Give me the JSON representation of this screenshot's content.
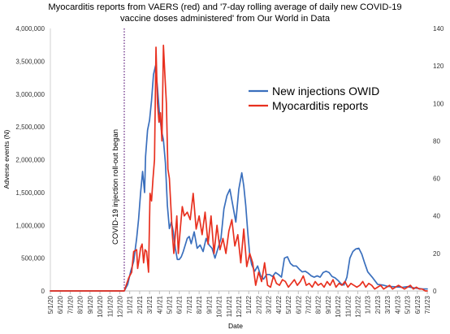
{
  "chart_data": {
    "type": "line",
    "title_line1": "Myocarditis reports from VAERS (red) and '7-day rolling average of daily new COVID-19",
    "title_line2": "vaccine doses administered' from Our World in Data",
    "xlabel": "Date",
    "ylabel": "Adverse events (N)",
    "y_left_ticks": [
      "0",
      "500,000",
      "1,000,000",
      "1,500,000",
      "2,000,000",
      "2,500,000",
      "3,000,000",
      "3,500,000",
      "4,000,000"
    ],
    "y_right_ticks": [
      "0",
      "20",
      "40",
      "60",
      "80",
      "100",
      "120",
      "140"
    ],
    "y_left_range": [
      0,
      4000000
    ],
    "y_right_range": [
      0,
      140
    ],
    "x_ticks": [
      "5/1/20",
      "6/1/20",
      "7/1/20",
      "8/1/20",
      "9/1/20",
      "10/1/20",
      "11/1/20",
      "12/1/20",
      "1/1/21",
      "2/1/21",
      "3/1/21",
      "4/1/21",
      "5/1/21",
      "6/1/21",
      "7/1/21",
      "8/1/21",
      "9/1/21",
      "10/1/21",
      "11/1/21",
      "12/1/21",
      "1/1/22",
      "2/1/22",
      "3/1/22",
      "4/1/22",
      "5/1/22",
      "6/1/22",
      "7/1/22",
      "8/1/22",
      "9/1/22",
      "10/1/22",
      "11/1/22",
      "12/1/22",
      "1/1/23",
      "2/1/23",
      "3/1/23",
      "4/1/23",
      "5/1/23",
      "6/1/23",
      "7/1/23"
    ],
    "annotation": "COVID-19 injection roll-out began",
    "annotation_x": 7.45,
    "grid": false,
    "legend_position": "right",
    "series": [
      {
        "name": "New injections OWID",
        "axis": "left",
        "color": "#3a6fbd",
        "x": [
          0,
          7.45,
          7.8,
          8.1,
          8.4,
          8.7,
          8.9,
          9.1,
          9.3,
          9.5,
          9.6,
          9.8,
          10.0,
          10.2,
          10.4,
          10.6,
          10.8,
          11.0,
          11.2,
          11.4,
          11.6,
          11.8,
          12.0,
          12.2,
          12.4,
          12.6,
          12.8,
          13.0,
          13.2,
          13.4,
          13.6,
          13.8,
          14.0,
          14.2,
          14.5,
          14.8,
          15.1,
          15.4,
          15.7,
          16.0,
          16.3,
          16.6,
          16.9,
          17.2,
          17.5,
          17.8,
          18.1,
          18.4,
          18.7,
          19.0,
          19.3,
          19.5,
          19.7,
          19.9,
          20.1,
          20.3,
          20.6,
          20.9,
          21.2,
          21.5,
          21.8,
          22.1,
          22.4,
          22.7,
          23.0,
          23.3,
          23.6,
          23.9,
          24.2,
          24.5,
          24.8,
          25.1,
          25.4,
          25.7,
          26.0,
          26.3,
          26.6,
          26.9,
          27.2,
          27.5,
          27.8,
          28.1,
          28.4,
          28.7,
          29.0,
          29.3,
          29.6,
          29.9,
          30.2,
          30.5,
          30.8,
          31.1,
          31.4,
          31.7,
          32.0,
          32.5,
          33.0,
          33.5,
          34.0,
          34.5,
          35.0,
          35.5,
          36.0,
          36.5,
          37.0,
          37.5,
          38.0
        ],
        "values": [
          0,
          0,
          100000,
          300000,
          450000,
          800000,
          1100000,
          1500000,
          1820000,
          1500000,
          2050000,
          2450000,
          2600000,
          2900000,
          3300000,
          3430000,
          3100000,
          2700000,
          2450000,
          2300000,
          1950000,
          1300000,
          950000,
          1050000,
          900000,
          650000,
          480000,
          480000,
          520000,
          600000,
          700000,
          800000,
          830000,
          720000,
          900000,
          650000,
          700000,
          600000,
          800000,
          700000,
          650000,
          500000,
          650000,
          800000,
          1250000,
          1450000,
          1550000,
          1300000,
          1050000,
          1550000,
          1800000,
          1600000,
          1300000,
          900000,
          550000,
          400000,
          300000,
          380000,
          230000,
          180000,
          250000,
          250000,
          220000,
          280000,
          250000,
          210000,
          500000,
          520000,
          420000,
          380000,
          380000,
          330000,
          290000,
          300000,
          270000,
          230000,
          210000,
          230000,
          210000,
          280000,
          300000,
          280000,
          220000,
          200000,
          160000,
          110000,
          90000,
          210000,
          500000,
          600000,
          640000,
          650000,
          560000,
          420000,
          290000,
          200000,
          100000,
          90000,
          70000,
          65000,
          60000,
          55000,
          65000,
          50000,
          40000,
          30000,
          30000
        ]
      },
      {
        "name": "Myocarditis reports",
        "axis": "right",
        "color": "#e8301f",
        "x": [
          0,
          7.45,
          7.9,
          8.2,
          8.4,
          8.7,
          8.8,
          8.95,
          9.1,
          9.25,
          9.4,
          9.55,
          9.7,
          9.9,
          10.05,
          10.2,
          10.35,
          10.5,
          10.65,
          10.8,
          10.95,
          11.1,
          11.25,
          11.4,
          11.55,
          11.7,
          11.85,
          12.0,
          12.15,
          12.3,
          12.45,
          12.6,
          12.75,
          12.9,
          13.1,
          13.3,
          13.5,
          13.8,
          14.1,
          14.4,
          14.7,
          15.0,
          15.3,
          15.6,
          15.9,
          16.2,
          16.5,
          16.8,
          17.1,
          17.4,
          17.7,
          18.0,
          18.3,
          18.6,
          18.9,
          19.2,
          19.5,
          19.8,
          20.1,
          20.4,
          20.7,
          21.0,
          21.3,
          21.6,
          21.9,
          22.2,
          22.5,
          22.8,
          23.1,
          23.4,
          23.7,
          24.0,
          24.3,
          24.6,
          24.9,
          25.2,
          25.5,
          25.8,
          26.1,
          26.4,
          26.7,
          27.0,
          27.3,
          27.6,
          27.9,
          28.2,
          28.5,
          28.8,
          29.1,
          29.4,
          29.7,
          30.0,
          30.3,
          30.6,
          30.9,
          31.2,
          31.5,
          31.8,
          32.1,
          32.4,
          32.7,
          33.0,
          33.3,
          33.6,
          33.9,
          34.2,
          34.5,
          34.8,
          35.1,
          35.4,
          35.7,
          36.0,
          36.3,
          36.6,
          36.9,
          37.2,
          37.5,
          37.8,
          38.0
        ],
        "values": [
          0,
          0,
          7,
          10,
          21,
          22,
          12,
          17,
          23,
          25,
          15,
          22,
          21,
          10,
          52,
          48,
          60,
          70,
          130,
          100,
          90,
          95,
          80,
          131,
          115,
          100,
          65,
          60,
          45,
          30,
          20,
          30,
          40,
          20,
          33,
          45,
          40,
          42,
          38,
          52,
          33,
          40,
          30,
          42,
          25,
          40,
          20,
          35,
          22,
          28,
          20,
          32,
          38,
          24,
          30,
          15,
          33,
          13,
          20,
          15,
          3,
          10,
          5,
          15,
          3,
          2,
          8,
          4,
          3,
          6,
          5,
          2,
          4,
          6,
          3,
          5,
          8,
          3,
          4,
          2,
          5,
          3,
          4,
          2,
          5,
          3,
          6,
          2,
          4,
          3,
          5,
          2,
          4,
          3,
          2,
          3,
          5,
          2,
          4,
          3,
          1,
          2,
          3,
          1,
          2,
          3,
          1,
          2,
          3,
          2,
          1,
          2,
          3,
          1,
          2,
          1,
          1,
          0,
          0
        ]
      }
    ]
  }
}
